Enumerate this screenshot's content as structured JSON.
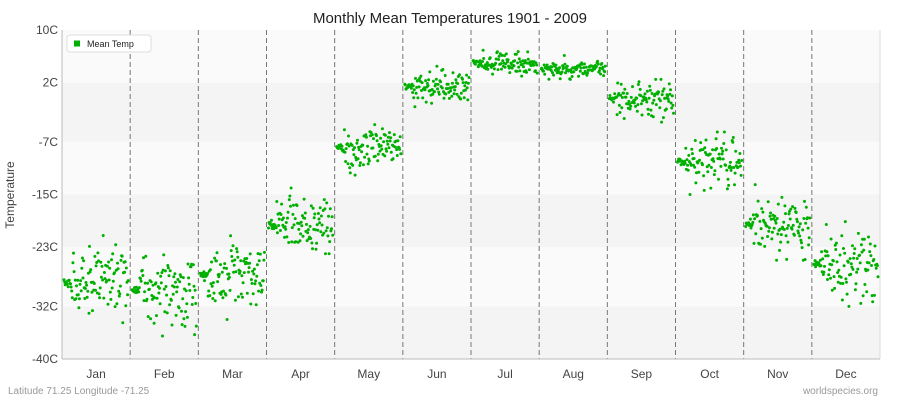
{
  "chart_data": {
    "type": "scatter",
    "title": "Monthly Mean Temperatures 1901 - 2009",
    "ylabel": "Temperature",
    "xlabel": "",
    "ylim": [
      -40,
      10
    ],
    "ytick_values": [
      -40,
      -32,
      -23,
      -15,
      -7,
      2,
      10
    ],
    "ytick_labels": [
      "-40C",
      "-32C",
      "-23C",
      "-15C",
      "-7C",
      "2C",
      "10C"
    ],
    "categories": [
      "Jan",
      "Feb",
      "Mar",
      "Apr",
      "May",
      "Jun",
      "Jul",
      "Aug",
      "Sep",
      "Oct",
      "Nov",
      "Dec"
    ],
    "grid": "horizontal bands, dashed vertical month separators",
    "legend_position": "top-left",
    "series": [
      {
        "name": "Mean Temp",
        "color": "#00b000",
        "points_per_month": 109,
        "month_stats": [
          {
            "month": "Jan",
            "cluster": -28.5,
            "min": -34.5,
            "max": -18.8
          },
          {
            "month": "Feb",
            "cluster": -29.5,
            "min": -36.5,
            "max": -18.5
          },
          {
            "month": "Mar",
            "cluster": -27.5,
            "min": -34.0,
            "max": -19.5
          },
          {
            "month": "Apr",
            "cluster": -19.5,
            "min": -24.0,
            "max": -12.5
          },
          {
            "month": "May",
            "cluster": -8.0,
            "min": -12.5,
            "max": -4.0
          },
          {
            "month": "Jun",
            "cluster": 1.5,
            "min": -2.5,
            "max": 4.5
          },
          {
            "month": "Jul",
            "cluster": 5.0,
            "min": 3.0,
            "max": 8.0
          },
          {
            "month": "Aug",
            "cluster": 4.0,
            "min": 2.5,
            "max": 7.0
          },
          {
            "month": "Sep",
            "cluster": -0.5,
            "min": -4.0,
            "max": 2.5
          },
          {
            "month": "Oct",
            "cluster": -10.0,
            "min": -15.0,
            "max": -5.5
          },
          {
            "month": "Nov",
            "cluster": -19.5,
            "min": -25.0,
            "max": -13.5
          },
          {
            "month": "Dec",
            "cluster": -25.5,
            "min": -32.0,
            "max": -18.5
          }
        ]
      }
    ]
  },
  "footer": {
    "location": "Latitude 71.25 Longitude -71.25",
    "source": "worldspecies.org"
  }
}
